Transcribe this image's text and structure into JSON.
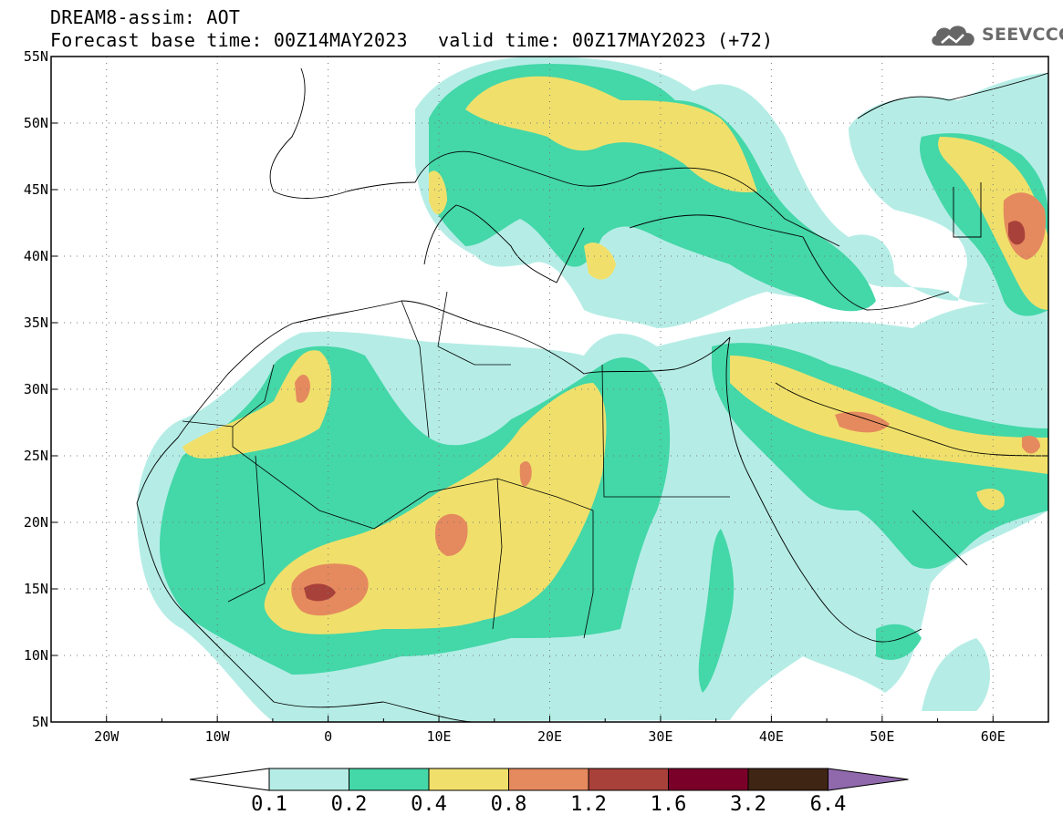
{
  "header": {
    "title_line1": "DREAM8-assim: AOT",
    "title_line2": "Forecast base time: 00Z14MAY2023",
    "title_line3": "valid time: 00Z17MAY2023 (+72)",
    "logo_text": "SEEVCCC",
    "logo_icon": "cloud-icon"
  },
  "map": {
    "lat_labels": [
      "55N",
      "50N",
      "45N",
      "40N",
      "35N",
      "30N",
      "25N",
      "20N",
      "15N",
      "10N",
      "5N"
    ],
    "lon_labels": [
      "20W",
      "10W",
      "0",
      "10E",
      "20E",
      "30E",
      "40E",
      "50E",
      "60E"
    ],
    "lat_range": [
      5,
      55
    ],
    "lon_range": [
      -25,
      65
    ],
    "grid": "dotted"
  },
  "colorbar": {
    "labels": [
      "0.1",
      "0.2",
      "0.4",
      "0.8",
      "1.2",
      "1.6",
      "3.2",
      "6.4"
    ],
    "colors": [
      "#b5ede6",
      "#44d7a8",
      "#f0e06b",
      "#e58a5e",
      "#a8413a",
      "#7a0029",
      "#3f2514",
      "#9069ad"
    ]
  }
}
